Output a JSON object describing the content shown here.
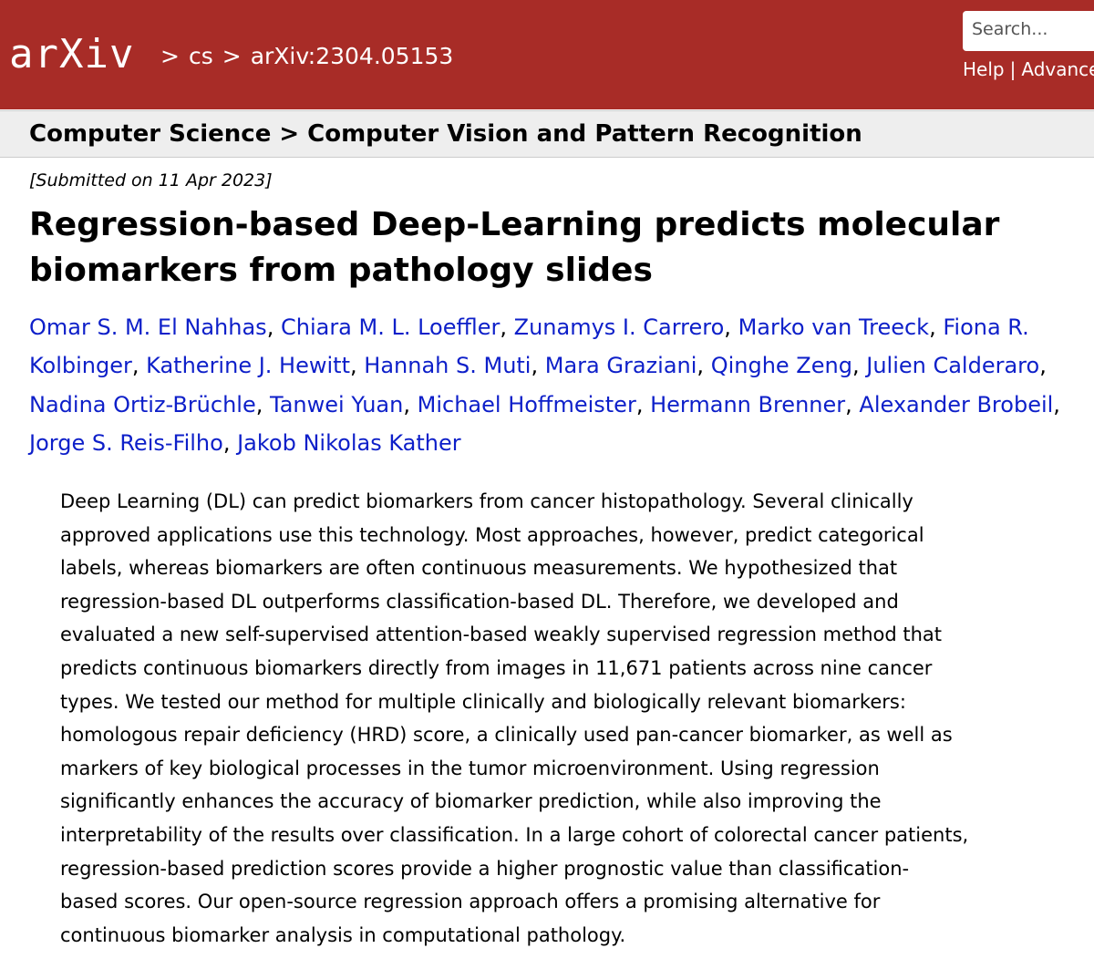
{
  "header": {
    "logo": "arXiv",
    "separator": ">",
    "breadcrumb": [
      "cs",
      "arXiv:2304.05153"
    ],
    "search_placeholder": "Search...",
    "links": [
      "Help",
      "|",
      "Advance"
    ]
  },
  "subheader": [
    "Computer Science",
    "Computer Vision and Pattern Recognition"
  ],
  "submitted": "[Submitted on 11 Apr 2023]",
  "title": "Regression-based Deep-Learning predicts molecular biomarkers from pathology slides",
  "author_separator": ",",
  "authors": [
    "Omar S. M. El Nahhas",
    "Chiara M. L. Loeffler",
    "Zunamys I. Carrero",
    "Marko van Treeck",
    "Fiona R. Kolbinger",
    "Katherine J. Hewitt",
    "Hannah S. Muti",
    "Mara Graziani",
    "Qinghe Zeng",
    "Julien Calderaro",
    "Nadina Ortiz-Brüchle",
    "Tanwei Yuan",
    "Michael Hoffmeister",
    "Hermann Brenner",
    "Alexander Brobeil",
    "Jorge S. Reis-Filho",
    "Jakob Nikolas Kather"
  ],
  "abstract_lines": [
    "Deep Learning (DL) can predict biomarkers from cancer histopathology. Several clinically",
    "approved applications use this technology. Most approaches, however, predict categorical",
    "labels, whereas biomarkers are often continuous measurements. We hypothesized that",
    "regression-based DL outperforms classification-based DL. Therefore, we developed and",
    "evaluated a new self-supervised attention-based weakly supervised regression method that",
    "predicts continuous biomarkers directly from images in 11,671 patients across nine cancer",
    "types. We tested our method for multiple clinically and biologically relevant biomarkers:",
    "homologous repair deficiency (HRD) score, a clinically used pan-cancer biomarker, as well as",
    "markers of key biological processes in the tumor microenvironment. Using regression",
    "significantly enhances the accuracy of biomarker prediction, while also improving the",
    "interpretability of the results over classification. In a large cohort of colorectal cancer patients,",
    "regression-based prediction scores provide a higher prognostic value than classification-",
    "based scores. Our open-source regression approach offers a promising alternative for",
    "continuous biomarker analysis in computational pathology."
  ]
}
